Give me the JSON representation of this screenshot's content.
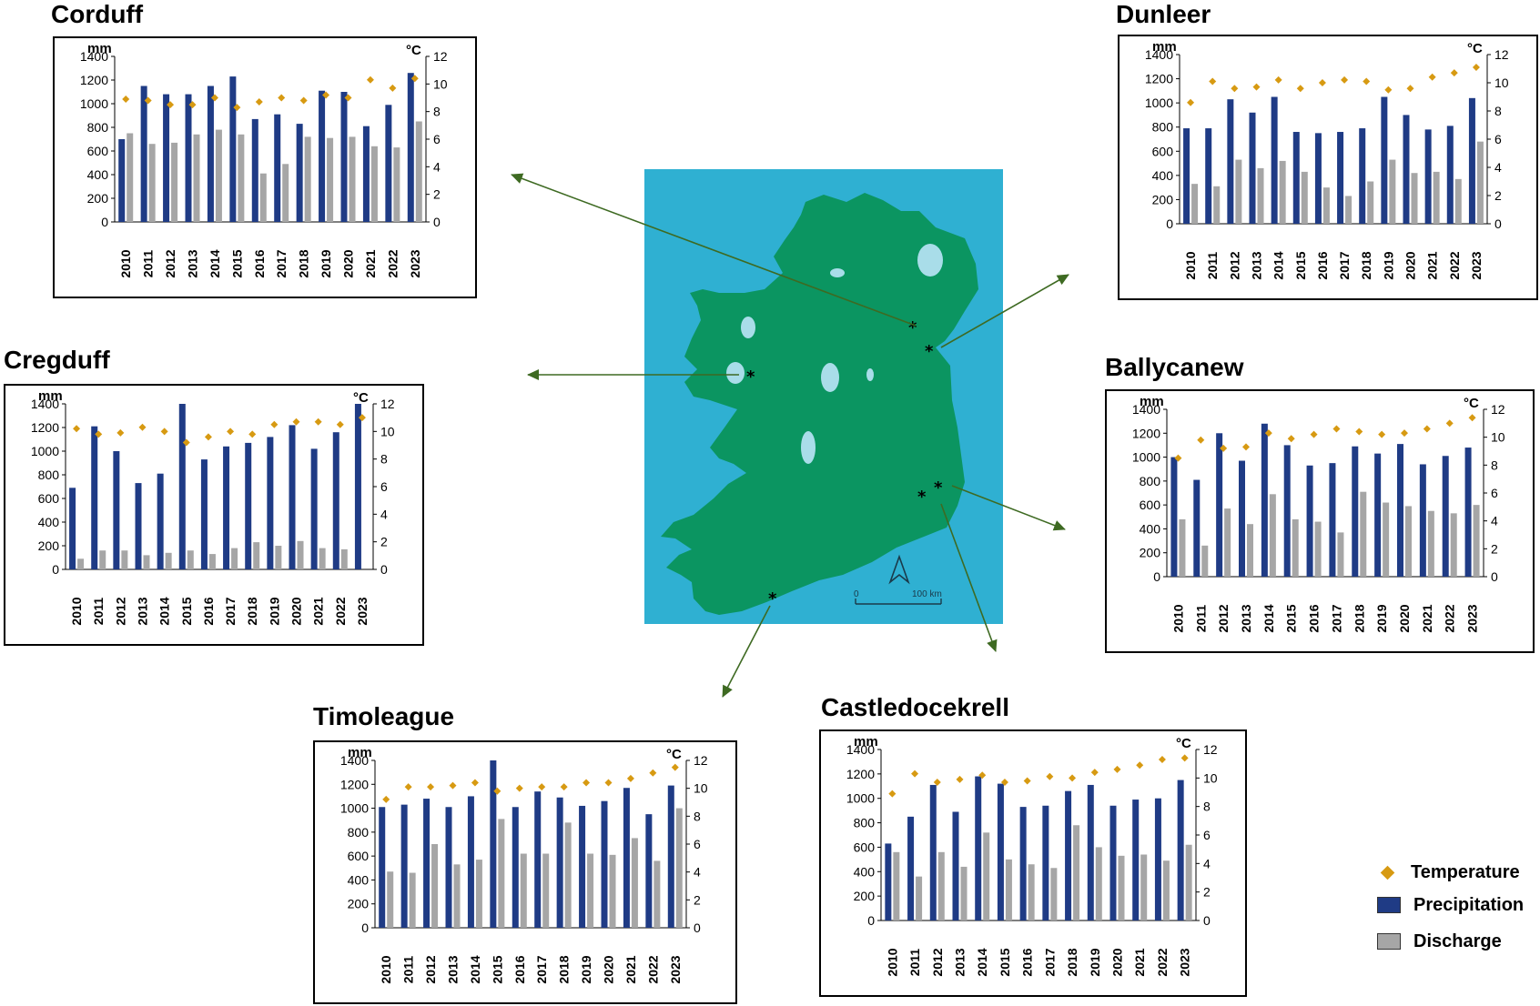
{
  "colors": {
    "precipitation": "#1f3b85",
    "discharge": "#a6a6a6",
    "temperature": "#d79a12",
    "map_water": "#2fb0d2",
    "map_land": "#0b9561",
    "map_lake": "#a9dde9",
    "arrow": "#3e6a22"
  },
  "legend": {
    "temperature": "Temperature",
    "precipitation": "Precipitation",
    "discharge": "Discharge"
  },
  "map": {
    "scale_zero": "0",
    "scale_end": "100 km",
    "north_icon": "north-arrow-icon"
  },
  "chart_data": [
    {
      "type": "bar",
      "title": "Corduff",
      "ylabel": "mm",
      "y2label": "°C",
      "ylim": [
        0,
        1400
      ],
      "y2lim": [
        0,
        12
      ],
      "yticks": [
        "0",
        "200",
        "400",
        "600",
        "800",
        "1000",
        "1200",
        "1400"
      ],
      "y2ticks": [
        "0",
        "2",
        "4",
        "6",
        "8",
        "10",
        "12"
      ],
      "categories": [
        "2010",
        "2011",
        "2012",
        "2013",
        "2014",
        "2015",
        "2016",
        "2017",
        "2018",
        "2019",
        "2020",
        "2021",
        "2022",
        "2023"
      ],
      "series": [
        {
          "name": "Precipitation",
          "kind": "bar",
          "values": [
            700,
            1150,
            1080,
            1080,
            1150,
            1230,
            870,
            910,
            830,
            1110,
            1100,
            810,
            990,
            1260
          ]
        },
        {
          "name": "Discharge",
          "kind": "bar",
          "values": [
            750,
            660,
            670,
            740,
            780,
            740,
            410,
            490,
            720,
            710,
            720,
            640,
            630,
            850
          ]
        },
        {
          "name": "Temperature",
          "kind": "point",
          "axis": "y2",
          "values": [
            8.9,
            8.8,
            8.5,
            8.5,
            9.0,
            8.3,
            8.7,
            9.0,
            8.8,
            9.2,
            9.0,
            10.3,
            9.7,
            10.4
          ]
        }
      ]
    },
    {
      "type": "bar",
      "title": "Dunleer",
      "ylabel": "mm",
      "y2label": "°C",
      "ylim": [
        0,
        1400
      ],
      "y2lim": [
        0,
        12
      ],
      "yticks": [
        "0",
        "200",
        "400",
        "600",
        "800",
        "1000",
        "1200",
        "1400"
      ],
      "y2ticks": [
        "0",
        "2",
        "4",
        "6",
        "8",
        "10",
        "12"
      ],
      "categories": [
        "2010",
        "2011",
        "2012",
        "2013",
        "2014",
        "2015",
        "2016",
        "2017",
        "2018",
        "2019",
        "2020",
        "2021",
        "2022",
        "2023"
      ],
      "series": [
        {
          "name": "Precipitation",
          "kind": "bar",
          "values": [
            790,
            790,
            1030,
            920,
            1050,
            760,
            750,
            760,
            790,
            1050,
            900,
            780,
            810,
            1040
          ]
        },
        {
          "name": "Discharge",
          "kind": "bar",
          "values": [
            330,
            310,
            530,
            460,
            520,
            430,
            300,
            230,
            350,
            530,
            420,
            430,
            370,
            680
          ]
        },
        {
          "name": "Temperature",
          "kind": "point",
          "axis": "y2",
          "values": [
            8.6,
            10.1,
            9.6,
            9.7,
            10.2,
            9.6,
            10.0,
            10.2,
            10.1,
            9.5,
            9.6,
            10.4,
            10.7,
            11.1
          ]
        }
      ]
    },
    {
      "type": "bar",
      "title": "Cregduff",
      "ylabel": "mm",
      "y2label": "°C",
      "ylim": [
        0,
        1400
      ],
      "y2lim": [
        0,
        12
      ],
      "yticks": [
        "0",
        "200",
        "400",
        "600",
        "800",
        "1000",
        "1200",
        "1400"
      ],
      "y2ticks": [
        "0",
        "2",
        "4",
        "6",
        "8",
        "10",
        "12"
      ],
      "categories": [
        "2010",
        "2011",
        "2012",
        "2013",
        "2014",
        "2015",
        "2016",
        "2017",
        "2018",
        "2019",
        "2020",
        "2021",
        "2022",
        "2023"
      ],
      "series": [
        {
          "name": "Precipitation",
          "kind": "bar",
          "values": [
            690,
            1210,
            1000,
            730,
            810,
            1400,
            930,
            1040,
            1070,
            1120,
            1220,
            1020,
            1160,
            1400
          ]
        },
        {
          "name": "Discharge",
          "kind": "bar",
          "values": [
            90,
            160,
            160,
            120,
            140,
            160,
            130,
            180,
            230,
            200,
            240,
            180,
            170,
            0
          ]
        },
        {
          "name": "Temperature",
          "kind": "point",
          "axis": "y2",
          "values": [
            10.2,
            9.8,
            9.9,
            10.3,
            10.0,
            9.2,
            9.6,
            10.0,
            9.8,
            10.5,
            10.7,
            10.7,
            10.5,
            11.0
          ]
        }
      ]
    },
    {
      "type": "bar",
      "title": "Ballycanew",
      "ylabel": "mm",
      "y2label": "°C",
      "ylim": [
        0,
        1400
      ],
      "y2lim": [
        0,
        12
      ],
      "yticks": [
        "0",
        "200",
        "400",
        "600",
        "800",
        "1000",
        "1200",
        "1400"
      ],
      "y2ticks": [
        "0",
        "2",
        "4",
        "6",
        "8",
        "10",
        "12"
      ],
      "categories": [
        "2010",
        "2011",
        "2012",
        "2013",
        "2014",
        "2015",
        "2016",
        "2017",
        "2018",
        "2019",
        "2020",
        "2021",
        "2022",
        "2023"
      ],
      "series": [
        {
          "name": "Precipitation",
          "kind": "bar",
          "values": [
            1000,
            810,
            1200,
            970,
            1280,
            1100,
            930,
            950,
            1090,
            1030,
            1110,
            940,
            1010,
            1080
          ]
        },
        {
          "name": "Discharge",
          "kind": "bar",
          "values": [
            480,
            260,
            570,
            440,
            690,
            480,
            460,
            370,
            710,
            620,
            590,
            550,
            530,
            600
          ]
        },
        {
          "name": "Temperature",
          "kind": "point",
          "axis": "y2",
          "values": [
            8.5,
            9.8,
            9.2,
            9.3,
            10.3,
            9.9,
            10.2,
            10.6,
            10.4,
            10.2,
            10.3,
            10.6,
            11.0,
            11.4
          ]
        }
      ]
    },
    {
      "type": "bar",
      "title": "Timoleague",
      "ylabel": "mm",
      "y2label": "°C",
      "ylim": [
        0,
        1400
      ],
      "y2lim": [
        0,
        12
      ],
      "yticks": [
        "0",
        "200",
        "400",
        "600",
        "800",
        "1000",
        "1200",
        "1400"
      ],
      "y2ticks": [
        "0",
        "2",
        "4",
        "6",
        "8",
        "10",
        "12"
      ],
      "categories": [
        "2010",
        "2011",
        "2012",
        "2013",
        "2014",
        "2015",
        "2016",
        "2017",
        "2018",
        "2019",
        "2020",
        "2021",
        "2022",
        "2023"
      ],
      "series": [
        {
          "name": "Precipitation",
          "kind": "bar",
          "values": [
            1010,
            1030,
            1080,
            1010,
            1100,
            1400,
            1010,
            1140,
            1090,
            1020,
            1060,
            1170,
            950,
            1190
          ]
        },
        {
          "name": "Discharge",
          "kind": "bar",
          "values": [
            470,
            460,
            700,
            530,
            570,
            910,
            620,
            620,
            880,
            620,
            610,
            750,
            560,
            1000
          ]
        },
        {
          "name": "Temperature",
          "kind": "point",
          "axis": "y2",
          "values": [
            9.2,
            10.1,
            10.1,
            10.2,
            10.4,
            9.8,
            10.0,
            10.1,
            10.1,
            10.4,
            10.4,
            10.7,
            11.1,
            11.5
          ]
        }
      ]
    },
    {
      "type": "bar",
      "title": "Castledocekrell",
      "ylabel": "mm",
      "y2label": "°C",
      "ylim": [
        0,
        1400
      ],
      "y2lim": [
        0,
        12
      ],
      "yticks": [
        "0",
        "200",
        "400",
        "600",
        "800",
        "1000",
        "1200",
        "1400"
      ],
      "y2ticks": [
        "0",
        "2",
        "4",
        "6",
        "8",
        "10",
        "12"
      ],
      "categories": [
        "2010",
        "2011",
        "2012",
        "2013",
        "2014",
        "2015",
        "2016",
        "2017",
        "2018",
        "2019",
        "2020",
        "2021",
        "2022",
        "2023"
      ],
      "series": [
        {
          "name": "Precipitation",
          "kind": "bar",
          "values": [
            630,
            850,
            1110,
            890,
            1180,
            1120,
            930,
            940,
            1060,
            1110,
            940,
            990,
            1000,
            1150
          ]
        },
        {
          "name": "Discharge",
          "kind": "bar",
          "values": [
            560,
            360,
            560,
            440,
            720,
            500,
            460,
            430,
            780,
            600,
            530,
            540,
            490,
            620
          ]
        },
        {
          "name": "Temperature",
          "kind": "point",
          "axis": "y2",
          "values": [
            8.9,
            10.3,
            9.7,
            9.9,
            10.2,
            9.7,
            9.8,
            10.1,
            10.0,
            10.4,
            10.6,
            10.9,
            11.3,
            11.4
          ]
        }
      ]
    }
  ]
}
